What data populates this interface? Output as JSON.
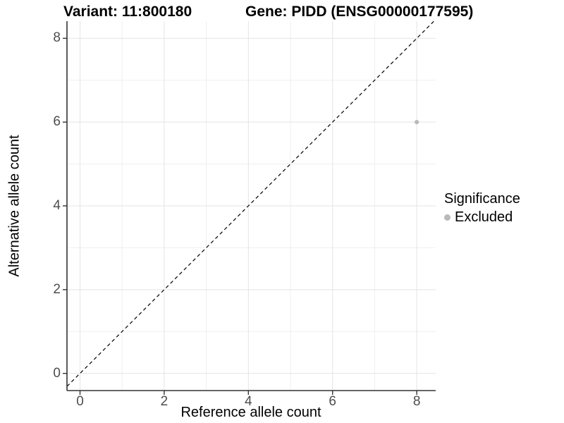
{
  "title": {
    "variant": "Variant: 11:800180",
    "gene": "Gene: PIDD (ENSG00000177595)"
  },
  "chart_data": {
    "type": "scatter",
    "title": "Variant: 11:800180   Gene: PIDD (ENSG00000177595)",
    "xlabel": "Reference allele count",
    "ylabel": "Alternative allele count",
    "xlim": [
      -0.31,
      8.45
    ],
    "ylim": [
      -0.41,
      8.41
    ],
    "x_ticks": [
      0,
      2,
      4,
      6,
      8
    ],
    "y_ticks": [
      0,
      2,
      4,
      6,
      8
    ],
    "minor_gridlines_x": [
      1,
      3,
      5,
      7
    ],
    "minor_gridlines_y": [
      1,
      3,
      5,
      7
    ],
    "grid": true,
    "points": [
      {
        "x": 8,
        "y": 6,
        "series": "Excluded"
      }
    ],
    "reference_line": {
      "kind": "identity",
      "style": "dashed"
    },
    "legend": {
      "title": "Significance",
      "position": "right",
      "items": [
        {
          "label": "Excluded",
          "color": "#b9b9b9"
        }
      ]
    },
    "colors": {
      "point": "#b9b9b9",
      "major_grid": "#e4e4e4",
      "minor_grid": "#efefef",
      "axis_line": "#333333",
      "tick_text": "#4d4d4d",
      "dashed_line": "#000000",
      "background": "#ffffff"
    }
  }
}
